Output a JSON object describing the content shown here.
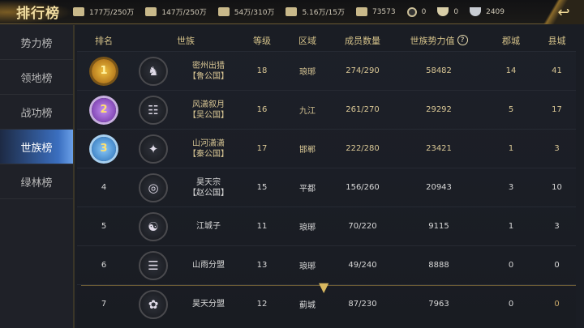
{
  "header": {
    "title": "排行榜",
    "back_icon": "back-arrow-icon",
    "resources": [
      {
        "icon": "grain-icon",
        "value": "177万/250万"
      },
      {
        "icon": "wood-icon",
        "value": "147万/250万"
      },
      {
        "icon": "stone-icon",
        "value": "54万/310万"
      },
      {
        "icon": "iron-icon",
        "value": "5.16万/15万"
      },
      {
        "icon": "order-icon",
        "value": "73573"
      },
      {
        "icon": "copper-coin-icon",
        "value": "0"
      },
      {
        "icon": "gold-ingot-icon",
        "value": "0"
      },
      {
        "icon": "silver-ingot-icon",
        "value": "2409"
      }
    ]
  },
  "sidebar": {
    "items": [
      {
        "label": "势力榜"
      },
      {
        "label": "领地榜"
      },
      {
        "label": "战功榜"
      },
      {
        "label": "世族榜",
        "active": true
      },
      {
        "label": "绿林榜"
      }
    ]
  },
  "table": {
    "headers": [
      "排名",
      "世族",
      "等级",
      "区域",
      "成员数量",
      "世族势力值",
      "郡城",
      "县城"
    ],
    "rows": [
      {
        "rank": "1",
        "name": "密州出猎",
        "state": "【鲁公国】",
        "level": "18",
        "region": "琅琊",
        "members": "274/290",
        "power": "58482",
        "commandery": "14",
        "county": "41"
      },
      {
        "rank": "2",
        "name": "风潇叙月",
        "state": "【吴公国】",
        "level": "16",
        "region": "九江",
        "members": "261/270",
        "power": "29292",
        "commandery": "5",
        "county": "17"
      },
      {
        "rank": "3",
        "name": "山河潇潇",
        "state": "【秦公国】",
        "level": "17",
        "region": "邯郸",
        "members": "222/280",
        "power": "23421",
        "commandery": "1",
        "county": "3"
      },
      {
        "rank": "4",
        "name": "昊天宗",
        "state": "【赵公国】",
        "level": "15",
        "region": "平都",
        "members": "156/260",
        "power": "20943",
        "commandery": "3",
        "county": "10"
      },
      {
        "rank": "5",
        "name": "江城子",
        "state": "",
        "level": "11",
        "region": "琅琊",
        "members": "70/220",
        "power": "9115",
        "commandery": "1",
        "county": "3"
      },
      {
        "rank": "6",
        "name": "山雨分盟",
        "state": "",
        "level": "13",
        "region": "琅琊",
        "members": "49/240",
        "power": "8888",
        "commandery": "0",
        "county": "0"
      },
      {
        "rank": "7",
        "name": "昊天分盟",
        "state": "",
        "level": "12",
        "region": "蓟城",
        "members": "87/230",
        "power": "7963",
        "commandery": "0",
        "county": "0"
      }
    ]
  }
}
